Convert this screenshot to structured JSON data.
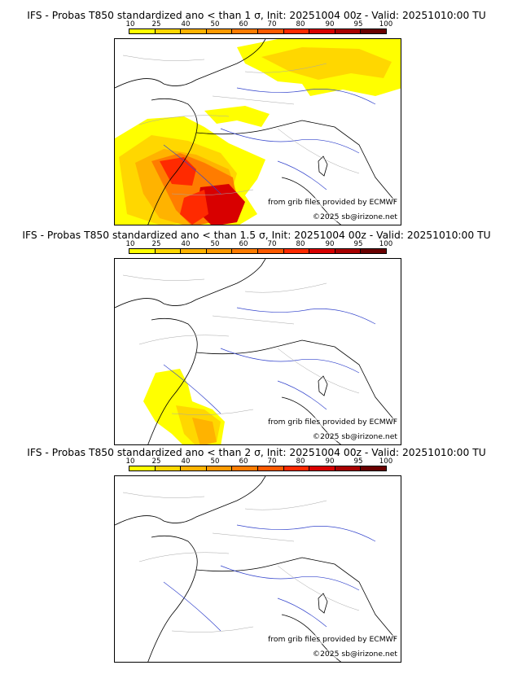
{
  "colors": {
    "scale": [
      "#ffff00",
      "#ffd700",
      "#ffb300",
      "#ff9a00",
      "#ff7c00",
      "#ff5a00",
      "#ff2a00",
      "#d80000",
      "#a80000",
      "#6a0000"
    ],
    "border": "#000000",
    "river": "#3344cc",
    "admin": "#a8a8a8"
  },
  "scale_ticks": [
    "10",
    "25",
    "40",
    "50",
    "60",
    "70",
    "80",
    "90",
    "95",
    "100"
  ],
  "credits": {
    "source": "from grib files provided by ECMWF",
    "copyright": "©2025 sb@irizone.net"
  },
  "panels": [
    {
      "title": "IFS - Probas T850  standardized ano < than 1 σ, Init: 20251004 00z - Valid: 20251010:00 TU"
    },
    {
      "title": "IFS - Probas T850  standardized ano < than 1.5 σ, Init: 20251004 00z - Valid: 20251010:00 TU"
    },
    {
      "title": "IFS - Probas T850  standardized ano < than 2 σ, Init: 20251004 00z - Valid: 20251010:00 TU"
    }
  ]
}
